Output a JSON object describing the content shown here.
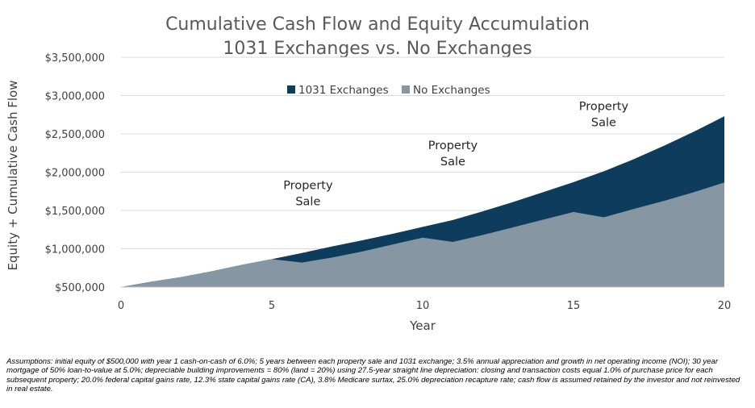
{
  "chart_data": {
    "type": "area",
    "title_lines": [
      "Cumulative Cash Flow and Equity Accumulation",
      "1031 Exchanges vs. No Exchanges"
    ],
    "xlabel": "Year",
    "ylabel": "Equity + Cumulative Cash Flow",
    "xlim": [
      0,
      20
    ],
    "ylim": [
      500000,
      3500000
    ],
    "x_ticks": [
      0,
      5,
      10,
      15,
      20
    ],
    "y_ticks": [
      500000,
      1000000,
      1500000,
      2000000,
      2500000,
      3000000,
      3500000
    ],
    "y_tick_labels": [
      "$500,000",
      "$1,000,000",
      "$1,500,000",
      "$2,000,000",
      "$2,500,000",
      "$3,000,000",
      "$3,500,000"
    ],
    "grid": "horizontal",
    "legend_position": "top-center",
    "x": [
      0,
      1,
      2,
      3,
      4,
      5,
      6,
      7,
      8,
      9,
      10,
      11,
      12,
      13,
      14,
      15,
      16,
      17,
      18,
      19,
      20
    ],
    "series": [
      {
        "name": "1031 Exchanges",
        "color": "#0d3c5c",
        "values": [
          500000,
          570000,
          630000,
          705000,
          790000,
          865000,
          945000,
          1030000,
          1110000,
          1195000,
          1285000,
          1375000,
          1490000,
          1610000,
          1740000,
          1870000,
          2010000,
          2170000,
          2345000,
          2530000,
          2730000
        ]
      },
      {
        "name": "No Exchanges",
        "color": "#8796a3",
        "values": [
          500000,
          570000,
          630000,
          705000,
          790000,
          865000,
          820000,
          885000,
          965000,
          1055000,
          1145000,
          1090000,
          1180000,
          1280000,
          1380000,
          1480000,
          1410000,
          1520000,
          1625000,
          1740000,
          1865000
        ]
      }
    ],
    "annotations": [
      {
        "lines": [
          "Property",
          "Sale"
        ],
        "x": 6.2,
        "y": 1780000
      },
      {
        "lines": [
          "Property",
          "Sale"
        ],
        "x": 11.0,
        "y": 2300000
      },
      {
        "lines": [
          "Property",
          "Sale"
        ],
        "x": 16.0,
        "y": 2810000
      }
    ]
  },
  "footnote": "Assumptions: initial equity of $500,000 with year 1 cash-on-cash of 6.0%; 5 years between each property sale and 1031 exchange; 3.5% annual appreciation and growth in net operating income (NOI); 30 year mortgage of 50% loan-to-value at 5.0%; depreciable building improvements = 80% (land = 20%) using 27.5-year straight line depreciation: closing and transaction costs equal 1.0% of purchase price for each subsequent property; 20.0% federal capital gains rate, 12.3% state capital gains rate (CA), 3.8% Medicare surtax, 25.0% depreciation recapture rate; cash flow is assumed retained by the investor and not reinvested in real estate."
}
